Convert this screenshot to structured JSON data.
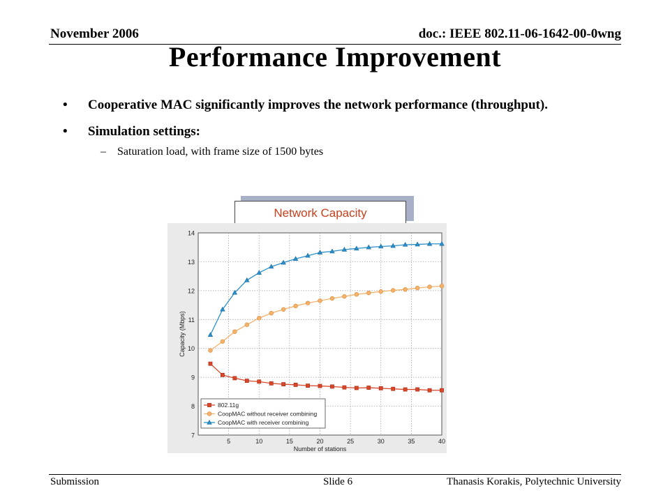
{
  "header": {
    "date": "November 2006",
    "doc": "doc.: IEEE 802.11-06-1642-00-0wng"
  },
  "title": "Performance Improvement",
  "bullets": [
    "Cooperative MAC significantly improves the network performance (throughput).",
    "Simulation settings:"
  ],
  "sub_bullet": "Saturation load, with frame size of 1500 bytes",
  "callout": "Network Capacity",
  "footer": {
    "left": "Submission",
    "center": "Slide 6",
    "right": "Thanasis Korakis, Polytechnic University"
  },
  "colors": {
    "callout_text": "#c8401e",
    "series_80211g": "#d9472b",
    "series_coop_no_rc": "#f5b26b",
    "series_coop_rc": "#2a8fc9"
  },
  "chart_data": {
    "type": "line",
    "xlabel": "Number of stations",
    "ylabel": "Capacity (Mbps)",
    "xlim": [
      0,
      40
    ],
    "ylim": [
      7,
      14
    ],
    "xticks": [
      5,
      10,
      15,
      20,
      25,
      30,
      35,
      40
    ],
    "yticks": [
      7,
      8,
      9,
      10,
      11,
      12,
      13,
      14
    ],
    "grid": true,
    "legend_position": "bottom-left",
    "x": [
      2,
      4,
      6,
      8,
      10,
      12,
      14,
      16,
      18,
      20,
      22,
      24,
      26,
      28,
      30,
      32,
      34,
      36,
      38,
      40
    ],
    "series": [
      {
        "name": "802.11g",
        "marker": "square",
        "color": "#d9472b",
        "values": [
          9.47,
          9.08,
          8.97,
          8.88,
          8.85,
          8.79,
          8.76,
          8.74,
          8.71,
          8.7,
          8.68,
          8.65,
          8.63,
          8.64,
          8.62,
          8.6,
          8.58,
          8.58,
          8.55,
          8.55
        ]
      },
      {
        "name": "CoopMAC without receiver combining",
        "marker": "circle",
        "color": "#f5b26b",
        "values": [
          9.93,
          10.24,
          10.58,
          10.82,
          11.05,
          11.22,
          11.35,
          11.47,
          11.57,
          11.65,
          11.73,
          11.8,
          11.87,
          11.92,
          11.97,
          12.01,
          12.04,
          12.09,
          12.13,
          12.16
        ]
      },
      {
        "name": "CoopMAC with receiver combining",
        "marker": "triangle",
        "color": "#2a8fc9",
        "values": [
          10.47,
          11.35,
          11.93,
          12.36,
          12.62,
          12.83,
          12.97,
          13.1,
          13.21,
          13.32,
          13.36,
          13.42,
          13.46,
          13.5,
          13.53,
          13.55,
          13.59,
          13.6,
          13.62,
          13.62
        ]
      }
    ]
  }
}
